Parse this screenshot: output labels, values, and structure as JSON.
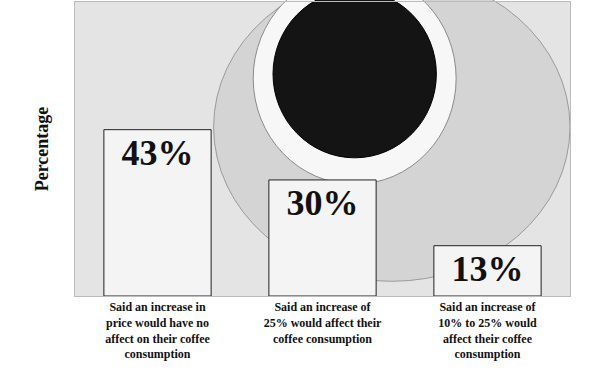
{
  "chart_data": {
    "type": "bar",
    "categories": [
      "Said an increase in price would have no affect on their coffee consumption",
      "Said an increase of 25% would affect their coffee consumption",
      "Said an increase of 10% to 25% would affect their coffee consumption"
    ],
    "values": [
      43,
      30,
      13
    ],
    "value_labels": [
      "43%",
      "30%",
      "13%"
    ],
    "data_labels": true,
    "ylabel": "Percentage",
    "ylim": [
      0,
      76
    ],
    "tick_labels": false,
    "color": "#f4f4f4"
  }
}
